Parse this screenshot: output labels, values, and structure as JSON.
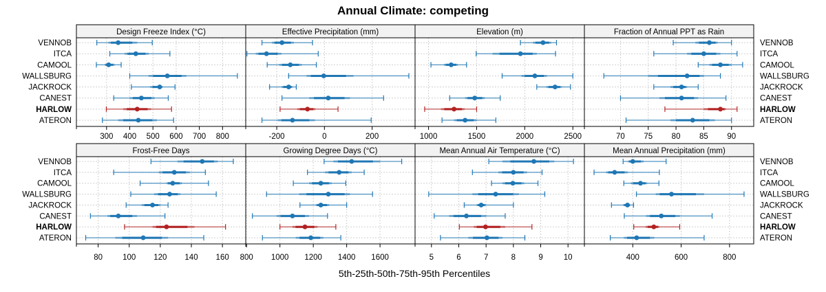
{
  "chart_data": {
    "type": "dot-interval",
    "title": "Annual Climate: competing",
    "xlabel": "5th-25th-50th-75th-95th Percentiles",
    "ylabel": "",
    "legend": "none",
    "grid": true,
    "colors": {
      "default": "#1f77b4",
      "highlight": "#b22222"
    },
    "highlight_series": "HARLOW",
    "rows": [
      "VENNOB",
      "ITCA",
      "CAMOOL",
      "WALLSBURG",
      "JACKROCK",
      "CANEST",
      "HARLOW",
      "ATERON"
    ],
    "panels": [
      {
        "title": "Design Freeze Index (°C)",
        "xlim": [
          170,
          900
        ],
        "ticks": [
          300,
          400,
          500,
          600,
          700,
          800
        ],
        "tick_labels": [
          "300",
          "400",
          "500",
          "600",
          "700",
          "800"
        ],
        "values": {
          "VENNOB": [
            258,
            308,
            350,
            432,
            497
          ],
          "ITCA": [
            314,
            378,
            426,
            482,
            573
          ],
          "CAMOOL": [
            256,
            292,
            309,
            335,
            363
          ],
          "WALLSBURG": [
            400,
            481,
            562,
            644,
            864
          ],
          "JACKROCK": [
            407,
            488,
            529,
            542,
            595
          ],
          "CANEST": [
            331,
            401,
            450,
            508,
            566
          ],
          "HARLOW": [
            299,
            372,
            432,
            492,
            580
          ],
          "ATERON": [
            282,
            350,
            437,
            517,
            589
          ]
        }
      },
      {
        "title": "Effective Precipitation (mm)",
        "xlim": [
          -330,
          380
        ],
        "ticks": [
          -200,
          0,
          200
        ],
        "tick_labels": [
          "-200",
          "0",
          "200"
        ],
        "values": {
          "VENNOB": [
            -262,
            -220,
            -178,
            -128,
            -50
          ],
          "ITCA": [
            -325,
            -288,
            -243,
            -180,
            -26
          ],
          "CAMOOL": [
            -240,
            -190,
            -143,
            -95,
            -34
          ],
          "WALLSBURG": [
            -150,
            -75,
            -3,
            122,
            354
          ],
          "JACKROCK": [
            -230,
            -180,
            -150,
            -134,
            -118
          ],
          "CANEST": [
            -178,
            -64,
            16,
            107,
            248
          ],
          "HARLOW": [
            -186,
            -114,
            -71,
            -38,
            57
          ],
          "ATERON": [
            -262,
            -196,
            -134,
            -40,
            196
          ]
        }
      },
      {
        "title": "Elevation (m)",
        "xlim": [
          860,
          2620
        ],
        "ticks": [
          1000,
          1500,
          2000,
          2500
        ],
        "tick_labels": [
          "1000",
          "1500",
          "2000",
          "2500"
        ],
        "values": {
          "VENNOB": [
            1955,
            2085,
            2190,
            2275,
            2330
          ],
          "ITCA": [
            1495,
            1665,
            1955,
            2125,
            2320
          ],
          "CAMOOL": [
            1025,
            1160,
            1235,
            1305,
            1395
          ],
          "WALLSBURG": [
            1765,
            1965,
            2105,
            2230,
            2500
          ],
          "JACKROCK": [
            2125,
            2225,
            2315,
            2385,
            2475
          ],
          "CANEST": [
            1220,
            1380,
            1480,
            1585,
            1745
          ],
          "HARLOW": [
            960,
            1130,
            1265,
            1375,
            1500
          ],
          "ATERON": [
            1140,
            1265,
            1380,
            1500,
            1700
          ]
        }
      },
      {
        "title": "Fraction of Annual PPT as Rain",
        "xlim": [
          63.5,
          94
        ],
        "ticks": [
          70,
          75,
          80,
          85,
          90
        ],
        "tick_labels": [
          "70",
          "75",
          "80",
          "85",
          "90"
        ],
        "values": {
          "VENNOB": [
            79.5,
            83.5,
            86,
            87.5,
            90
          ],
          "ITCA": [
            76,
            82,
            85,
            88,
            91
          ],
          "CAMOOL": [
            84,
            86,
            88,
            90,
            92
          ],
          "WALLSBURG": [
            67,
            75,
            82,
            85,
            88
          ],
          "JACKROCK": [
            76,
            79,
            81,
            82,
            84
          ],
          "CANEST": [
            70,
            77,
            81,
            84,
            89
          ],
          "HARLOW": [
            78,
            85,
            88,
            89,
            91
          ],
          "ATERON": [
            71,
            79,
            83,
            87,
            90
          ]
        }
      },
      {
        "title": "Frost-Free Days",
        "xlim": [
          66,
          175
        ],
        "ticks": [
          80,
          100,
          120,
          140,
          160
        ],
        "tick_labels": [
          "80",
          "100",
          "120",
          "140",
          "160"
        ],
        "values": {
          "VENNOB": [
            114,
            131,
            147,
            157,
            167
          ],
          "ITCA": [
            90,
            119,
            129,
            139,
            149
          ],
          "CAMOOL": [
            107,
            124,
            128,
            134,
            151
          ],
          "WALLSBURG": [
            101,
            116,
            126,
            133,
            156
          ],
          "JACKROCK": [
            98,
            108,
            115,
            120,
            125
          ],
          "CANEST": [
            75,
            86,
            93,
            105,
            123
          ],
          "HARLOW": [
            97,
            115,
            124,
            142,
            162
          ],
          "ATERON": [
            72,
            91,
            109,
            125,
            148
          ]
        }
      },
      {
        "title": "Growing Degree Days (°C)",
        "xlim": [
          795,
          1810
        ],
        "ticks": [
          800,
          1000,
          1200,
          1400,
          1600
        ],
        "tick_labels": [
          "800",
          "1000",
          "1200",
          "1400",
          "1600"
        ],
        "values": {
          "VENNOB": [
            1265,
            1320,
            1430,
            1600,
            1730
          ],
          "ITCA": [
            1165,
            1270,
            1355,
            1430,
            1505
          ],
          "CAMOOL": [
            1080,
            1175,
            1245,
            1310,
            1395
          ],
          "WALLSBURG": [
            920,
            1115,
            1290,
            1420,
            1555
          ],
          "JACKROCK": [
            1120,
            1215,
            1245,
            1295,
            1400
          ],
          "CANEST": [
            835,
            980,
            1075,
            1175,
            1285
          ],
          "HARLOW": [
            1000,
            1075,
            1150,
            1225,
            1335
          ],
          "ATERON": [
            895,
            1095,
            1185,
            1260,
            1365
          ]
        }
      },
      {
        "title": "Mean Annual Air Temperature (°C)",
        "xlim": [
          4.4,
          10.6
        ],
        "ticks": [
          5,
          6,
          7,
          8,
          9,
          10
        ],
        "tick_labels": [
          "5",
          "6",
          "7",
          "8",
          "9",
          "10"
        ],
        "values": {
          "VENNOB": [
            7.1,
            7.6,
            8.75,
            9.5,
            10.2
          ],
          "ITCA": [
            6.5,
            7.45,
            8.0,
            8.5,
            9.05
          ],
          "CAMOOL": [
            7.2,
            7.6,
            7.98,
            8.4,
            8.9
          ],
          "WALLSBURG": [
            4.9,
            6.5,
            7.35,
            8.2,
            9.15
          ],
          "JACKROCK": [
            6.2,
            6.65,
            6.82,
            7.0,
            8.0
          ],
          "CANEST": [
            5.1,
            5.65,
            6.28,
            7.0,
            7.7
          ],
          "HARLOW": [
            6.02,
            6.55,
            6.98,
            7.7,
            8.68
          ],
          "ATERON": [
            5.33,
            6.35,
            7.03,
            7.6,
            8.42
          ]
        }
      },
      {
        "title": "Mean Annual Precipitation (mm)",
        "xlim": [
          200,
          900
        ],
        "ticks": [
          400,
          600,
          800
        ],
        "tick_labels": [
          "400",
          "600",
          "800"
        ],
        "values": {
          "VENNOB": [
            360,
            380,
            400,
            445,
            538
          ],
          "ITCA": [
            240,
            290,
            325,
            380,
            510
          ],
          "CAMOOL": [
            363,
            392,
            432,
            460,
            508
          ],
          "WALLSBURG": [
            415,
            495,
            560,
            695,
            860
          ],
          "JACKROCK": [
            312,
            360,
            378,
            390,
            403
          ],
          "CANEST": [
            365,
            455,
            518,
            595,
            728
          ],
          "HARLOW": [
            404,
            453,
            487,
            510,
            594
          ],
          "ATERON": [
            307,
            363,
            416,
            489,
            695
          ]
        }
      }
    ]
  }
}
